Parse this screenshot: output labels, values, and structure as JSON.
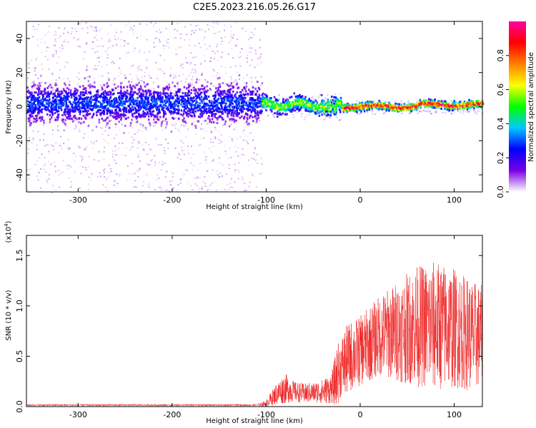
{
  "title": "C2E5.2023.216.05.26.G17",
  "chart_data": [
    {
      "type": "heatmap",
      "xlabel": "Height of straight line (km)",
      "ylabel": "Frequency (Hz)",
      "xlim": [
        -355,
        130
      ],
      "ylim": [
        -50,
        50
      ],
      "x_ticks": [
        -300,
        -200,
        -100,
        0,
        100
      ],
      "y_ticks": [
        -40,
        -20,
        0,
        20,
        40
      ],
      "x_tick_labels": [
        "-300",
        "-200",
        "-100",
        "0",
        "100"
      ],
      "y_tick_labels": [
        "-40",
        "-20",
        "0",
        "20",
        "40"
      ],
      "colorbar": {
        "label": "Normalized spectral amplitude",
        "range": [
          0,
          1
        ],
        "ticks": [
          0.0,
          0.2,
          0.4,
          0.6,
          0.8
        ],
        "tick_labels": [
          "0.0",
          "0.2",
          "0.4",
          "0.6",
          "0.8"
        ],
        "colors": [
          "#ffffff",
          "#7a00e6",
          "#0000ff",
          "#00c8ff",
          "#00ff00",
          "#ffff00",
          "#ff8000",
          "#ff0000",
          "#ff00a0"
        ]
      },
      "regions": [
        {
          "x_range": [
            -355,
            -105
          ],
          "center_freq": 2,
          "core_halfwidth": 10,
          "scatter_halfwidth": 50,
          "peak_amplitude": 0.3
        },
        {
          "x_range": [
            -105,
            -20
          ],
          "center_freq": 1,
          "core_halfwidth": 4,
          "scatter_halfwidth": 8,
          "peak_amplitude": 0.6
        },
        {
          "x_range": [
            -20,
            130
          ],
          "center_freq": 0,
          "core_halfwidth": 2,
          "scatter_halfwidth": 4,
          "peak_amplitude": 0.95
        }
      ]
    },
    {
      "type": "line",
      "xlabel": "Height of straight line (km)",
      "ylabel": "SNR (10 * v/v)",
      "y_multiplier": "(x10^4)",
      "multiplier_base": "(x10",
      "multiplier_exp": "4",
      "multiplier_close": ")",
      "xlim": [
        -355,
        130
      ],
      "ylim": [
        0,
        1.7
      ],
      "x_ticks": [
        -300,
        -200,
        -100,
        0,
        100
      ],
      "y_ticks": [
        0.0,
        0.5,
        1.0,
        1.5
      ],
      "x_tick_labels": [
        "-300",
        "-200",
        "-100",
        "0",
        "100"
      ],
      "y_tick_labels": [
        "0.0",
        "0.5",
        "1.0",
        "1.5"
      ],
      "line_color": "#ee2222",
      "envelope": {
        "x": [
          -355,
          -110,
          -100,
          -90,
          -80,
          -70,
          -60,
          -50,
          -40,
          -30,
          -25,
          -20,
          -15,
          -10,
          0,
          20,
          40,
          60,
          80,
          100,
          120,
          130
        ],
        "mean": [
          0.015,
          0.015,
          0.03,
          0.12,
          0.18,
          0.15,
          0.13,
          0.14,
          0.15,
          0.18,
          0.3,
          0.4,
          0.45,
          0.5,
          0.55,
          0.7,
          0.75,
          0.8,
          0.8,
          0.78,
          0.7,
          0.7
        ],
        "spread": [
          0.01,
          0.01,
          0.03,
          0.1,
          0.15,
          0.1,
          0.1,
          0.1,
          0.12,
          0.15,
          0.3,
          0.3,
          0.35,
          0.35,
          0.35,
          0.4,
          0.5,
          0.6,
          0.65,
          0.6,
          0.55,
          0.5
        ]
      }
    }
  ]
}
